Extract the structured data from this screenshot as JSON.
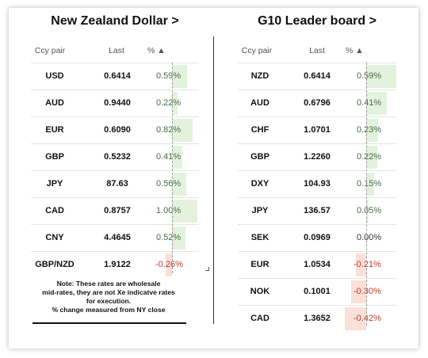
{
  "left": {
    "title": "New Zealand Dollar >",
    "headers": {
      "pair": "Ccy pair",
      "last": "Last",
      "pct": "% ▲"
    },
    "rows": [
      {
        "pair": "USD",
        "last": "0.6414",
        "pct": "0.59%",
        "value": 0.59
      },
      {
        "pair": "AUD",
        "last": "0.9440",
        "pct": "0.22%",
        "value": 0.22
      },
      {
        "pair": "EUR",
        "last": "0.6090",
        "pct": "0.82%",
        "value": 0.82
      },
      {
        "pair": "GBP",
        "last": "0.5232",
        "pct": "0.41%",
        "value": 0.41
      },
      {
        "pair": "JPY",
        "last": "87.63",
        "pct": "0.56%",
        "value": 0.56
      },
      {
        "pair": "CAD",
        "last": "0.8757",
        "pct": "1.00%",
        "value": 1.0
      },
      {
        "pair": "CNY",
        "last": "4.4645",
        "pct": "0.52%",
        "value": 0.52
      },
      {
        "pair": "GBP/NZD",
        "last": "1.9122",
        "pct": "-0.26%",
        "value": -0.26
      }
    ],
    "note": {
      "line1": "Note: These rates are wholesale",
      "line2": "mid-rates, they are not Xe indicatve rates",
      "line3": "for execution.",
      "line4": "% change measured from NY close"
    }
  },
  "right": {
    "title": "G10 Leader board >",
    "headers": {
      "pair": "Ccy pair",
      "last": "Last",
      "pct": "% ▲"
    },
    "rows": [
      {
        "pair": "NZD",
        "last": "0.6414",
        "pct": "0.59%",
        "value": 0.59
      },
      {
        "pair": "AUD",
        "last": "0.6796",
        "pct": "0.41%",
        "value": 0.41
      },
      {
        "pair": "CHF",
        "last": "1.0701",
        "pct": "0.23%",
        "value": 0.23
      },
      {
        "pair": "GBP",
        "last": "1.2260",
        "pct": "0.22%",
        "value": 0.22
      },
      {
        "pair": "DXY",
        "last": "104.93",
        "pct": "0.15%",
        "value": 0.15
      },
      {
        "pair": "JPY",
        "last": "136.57",
        "pct": "0.05%",
        "value": 0.05
      },
      {
        "pair": "SEK",
        "last": "0.0969",
        "pct": "0.00%",
        "value": 0.0
      },
      {
        "pair": "EUR",
        "last": "1.0534",
        "pct": "-0.21%",
        "value": -0.21
      },
      {
        "pair": "NOK",
        "last": "0.1001",
        "pct": "-0.30%",
        "value": -0.3
      },
      {
        "pair": "CAD",
        "last": "1.3652",
        "pct": "-0.42%",
        "value": -0.42
      }
    ]
  },
  "colors": {
    "positive_bar": "#e3f2dd",
    "negative_bar": "#fbe0d8",
    "negative_text": "#c0392b"
  }
}
